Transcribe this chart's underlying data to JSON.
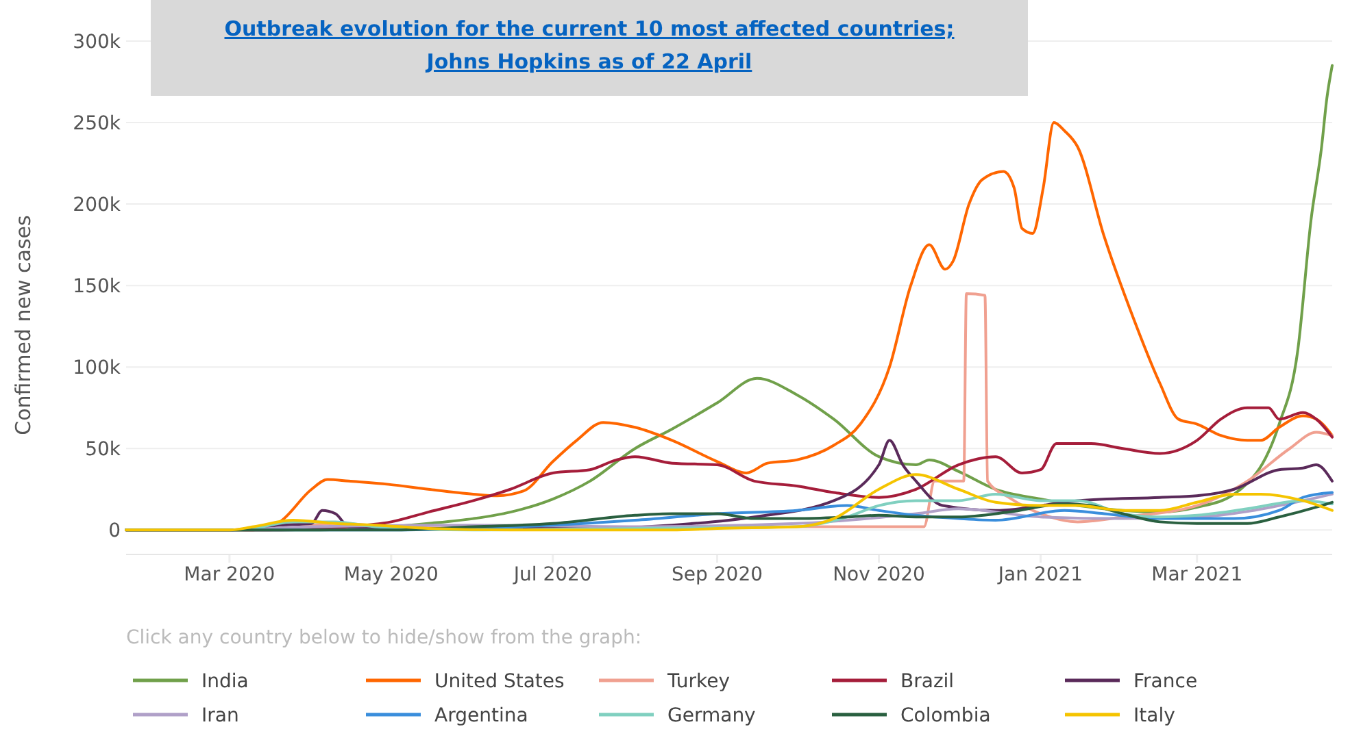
{
  "chart_data": {
    "type": "line",
    "title": "Outbreak evolution for the current 10 most affected countries;\nJohns Hopkins as of  22 April",
    "ylabel": "Confirmed new cases",
    "legend_title": "Click any country below to hide/show from the graph:",
    "legend": "bottom",
    "grid": "y",
    "marker": "none",
    "line_style": "solid",
    "xlim": [
      "2020-01-22",
      "2021-04-21"
    ],
    "xticks": [
      {
        "value": "2020-03-01",
        "label": "Mar 2020"
      },
      {
        "value": "2020-05-01",
        "label": "May 2020"
      },
      {
        "value": "2020-07-01",
        "label": "Jul 2020"
      },
      {
        "value": "2020-09-01",
        "label": "Sep 2020"
      },
      {
        "value": "2020-11-01",
        "label": "Nov 2020"
      },
      {
        "value": "2021-01-01",
        "label": "Jan 2021"
      },
      {
        "value": "2021-03-01",
        "label": "Mar 2021"
      }
    ],
    "ylim": [
      -15000,
      300000
    ],
    "yticks": [
      {
        "value": 0,
        "label": "0"
      },
      {
        "value": 50000,
        "label": "50k"
      },
      {
        "value": 100000,
        "label": "100k"
      },
      {
        "value": 150000,
        "label": "150k"
      },
      {
        "value": 200000,
        "label": "200k"
      },
      {
        "value": 250000,
        "label": "250k"
      },
      {
        "value": 300000,
        "label": "300k"
      }
    ],
    "series": [
      {
        "name": "India",
        "color": "#70a04a",
        "x": [
          "2020-01-22",
          "2020-04-01",
          "2020-05-01",
          "2020-05-15",
          "2020-06-01",
          "2020-06-15",
          "2020-07-01",
          "2020-07-15",
          "2020-08-01",
          "2020-08-15",
          "2020-09-01",
          "2020-09-16",
          "2020-10-01",
          "2020-10-15",
          "2020-11-01",
          "2020-11-15",
          "2020-11-20",
          "2020-12-01",
          "2020-12-15",
          "2021-01-01",
          "2021-01-15",
          "2021-02-01",
          "2021-02-15",
          "2021-03-01",
          "2021-03-15",
          "2021-04-01",
          "2021-04-08",
          "2021-04-13",
          "2021-04-17",
          "2021-04-19",
          "2021-04-21"
        ],
        "values": [
          0,
          0,
          2000,
          4000,
          7000,
          11000,
          19000,
          30000,
          50000,
          62000,
          78000,
          93000,
          83000,
          68000,
          45000,
          40000,
          43000,
          36000,
          25000,
          19000,
          15000,
          12000,
          11000,
          14000,
          22000,
          65000,
          110000,
          190000,
          235000,
          265000,
          285000
        ]
      },
      {
        "name": "United States",
        "color": "#ff6600",
        "x": [
          "2020-01-22",
          "2020-03-10",
          "2020-03-20",
          "2020-04-01",
          "2020-04-07",
          "2020-04-15",
          "2020-04-30",
          "2020-05-15",
          "2020-06-01",
          "2020-06-10",
          "2020-06-20",
          "2020-07-01",
          "2020-07-10",
          "2020-07-20",
          "2020-08-01",
          "2020-08-15",
          "2020-09-01",
          "2020-09-12",
          "2020-09-20",
          "2020-10-01",
          "2020-10-15",
          "2020-10-25",
          "2020-11-05",
          "2020-11-13",
          "2020-11-20",
          "2020-11-26",
          "2020-11-29",
          "2020-12-05",
          "2020-12-10",
          "2020-12-18",
          "2020-12-22",
          "2020-12-25",
          "2020-12-29",
          "2021-01-02",
          "2021-01-06",
          "2021-01-10",
          "2021-01-15",
          "2021-01-25",
          "2021-02-05",
          "2021-02-15",
          "2021-02-22",
          "2021-03-01",
          "2021-03-10",
          "2021-03-20",
          "2021-03-25",
          "2021-04-01",
          "2021-04-10",
          "2021-04-15",
          "2021-04-21"
        ],
        "values": [
          0,
          0,
          5000,
          25000,
          31000,
          30000,
          28000,
          25000,
          22000,
          21000,
          24000,
          42000,
          55000,
          66000,
          63000,
          55000,
          42000,
          35000,
          41000,
          43000,
          52000,
          65000,
          100000,
          150000,
          175000,
          160000,
          165000,
          200000,
          215000,
          220000,
          210000,
          185000,
          182000,
          210000,
          250000,
          245000,
          235000,
          180000,
          130000,
          90000,
          68000,
          65000,
          58000,
          55000,
          55000,
          63000,
          70000,
          68000,
          58000
        ]
      },
      {
        "name": "Turkey",
        "color": "#f0a090",
        "x": [
          "2020-01-22",
          "2020-03-15",
          "2020-04-10",
          "2020-05-01",
          "2020-06-01",
          "2020-08-01",
          "2020-10-01",
          "2020-11-18",
          "2020-11-22",
          "2020-12-03",
          "2020-12-04",
          "2020-12-11",
          "2020-12-12",
          "2020-12-20",
          "2021-01-01",
          "2021-01-15",
          "2021-02-01",
          "2021-03-01",
          "2021-03-20",
          "2021-04-05",
          "2021-04-15",
          "2021-04-21"
        ],
        "values": [
          0,
          0,
          4000,
          2000,
          1000,
          1000,
          2000,
          2000,
          30000,
          30000,
          145000,
          144000,
          30000,
          20000,
          10000,
          5000,
          8000,
          15000,
          30000,
          50000,
          60000,
          58000
        ]
      },
      {
        "name": "Brazil",
        "color": "#a51d3a",
        "x": [
          "2020-01-22",
          "2020-03-20",
          "2020-04-15",
          "2020-05-01",
          "2020-05-15",
          "2020-06-01",
          "2020-06-15",
          "2020-07-01",
          "2020-07-15",
          "2020-07-25",
          "2020-08-01",
          "2020-08-15",
          "2020-09-01",
          "2020-09-15",
          "2020-10-01",
          "2020-10-15",
          "2020-11-01",
          "2020-11-15",
          "2020-12-01",
          "2020-12-15",
          "2020-12-25",
          "2021-01-01",
          "2021-01-07",
          "2021-01-20",
          "2021-02-01",
          "2021-02-15",
          "2021-03-01",
          "2021-03-10",
          "2021-03-20",
          "2021-03-28",
          "2021-04-01",
          "2021-04-10",
          "2021-04-15",
          "2021-04-21"
        ],
        "values": [
          0,
          0,
          2000,
          5000,
          11000,
          18000,
          25000,
          35000,
          37000,
          43000,
          45000,
          41000,
          40000,
          30000,
          27000,
          23000,
          20000,
          25000,
          40000,
          45000,
          35000,
          37000,
          53000,
          53000,
          50000,
          47000,
          55000,
          68000,
          75000,
          75000,
          68000,
          72000,
          68000,
          57000
        ]
      },
      {
        "name": "France",
        "color": "#5a2a5a",
        "x": [
          "2020-01-22",
          "2020-03-01",
          "2020-03-20",
          "2020-04-01",
          "2020-04-05",
          "2020-04-10",
          "2020-04-15",
          "2020-05-15",
          "2020-07-15",
          "2020-08-15",
          "2020-09-15",
          "2020-10-15",
          "2020-11-01",
          "2020-11-05",
          "2020-11-10",
          "2020-11-15",
          "2020-11-25",
          "2020-12-15",
          "2021-01-15",
          "2021-02-15",
          "2021-03-01",
          "2021-03-15",
          "2021-04-01",
          "2021-04-10",
          "2021-04-15",
          "2021-04-21"
        ],
        "values": [
          0,
          0,
          3000,
          4000,
          12000,
          10000,
          2000,
          1000,
          1000,
          3000,
          8000,
          18000,
          40000,
          55000,
          40000,
          30000,
          15000,
          12000,
          18000,
          20000,
          21000,
          25000,
          37000,
          38000,
          40000,
          30000
        ]
      },
      {
        "name": "Iran",
        "color": "#b0a0c8",
        "x": [
          "2020-01-22",
          "2020-03-01",
          "2020-04-01",
          "2020-06-01",
          "2020-08-01",
          "2020-10-01",
          "2020-11-15",
          "2020-12-01",
          "2021-01-01",
          "2021-02-01",
          "2021-03-01",
          "2021-04-10",
          "2021-04-21"
        ],
        "values": [
          0,
          0,
          2000,
          3000,
          2000,
          4000,
          10000,
          13000,
          8000,
          7000,
          8000,
          18000,
          22000
        ]
      },
      {
        "name": "Argentina",
        "color": "#3a8edc",
        "x": [
          "2020-01-22",
          "2020-05-01",
          "2020-06-01",
          "2020-07-01",
          "2020-08-01",
          "2020-09-01",
          "2020-10-01",
          "2020-10-20",
          "2020-11-01",
          "2020-11-15",
          "2020-12-01",
          "2020-12-15",
          "2021-01-10",
          "2021-01-25",
          "2021-02-15",
          "2021-03-15",
          "2021-04-01",
          "2021-04-10",
          "2021-04-21"
        ],
        "values": [
          0,
          0,
          1000,
          3000,
          6000,
          10000,
          12000,
          15000,
          12000,
          9000,
          7000,
          6000,
          12000,
          10000,
          7000,
          7000,
          12000,
          20000,
          23000
        ]
      },
      {
        "name": "Germany",
        "color": "#80d0c0",
        "x": [
          "2020-01-22",
          "2020-03-05",
          "2020-03-25",
          "2020-04-10",
          "2020-04-25",
          "2020-06-01",
          "2020-08-01",
          "2020-10-01",
          "2020-10-20",
          "2020-11-01",
          "2020-11-15",
          "2020-12-01",
          "2020-12-15",
          "2021-01-01",
          "2021-01-15",
          "2021-02-01",
          "2021-02-15",
          "2021-03-01",
          "2021-03-20",
          "2021-04-10",
          "2021-04-21"
        ],
        "values": [
          0,
          0,
          5000,
          5000,
          2000,
          0,
          1000,
          2000,
          8000,
          15000,
          18000,
          18000,
          22000,
          18000,
          18000,
          10000,
          8000,
          9000,
          13000,
          18000,
          16000
        ]
      },
      {
        "name": "Colombia",
        "color": "#2a6040",
        "x": [
          "2020-01-22",
          "2020-04-01",
          "2020-05-01",
          "2020-06-01",
          "2020-07-01",
          "2020-08-01",
          "2020-08-15",
          "2020-09-01",
          "2020-09-15",
          "2020-10-01",
          "2020-10-20",
          "2020-11-01",
          "2020-11-15",
          "2020-12-01",
          "2020-12-20",
          "2021-01-10",
          "2021-01-20",
          "2021-02-01",
          "2021-02-15",
          "2021-03-01",
          "2021-03-20",
          "2021-04-01",
          "2021-04-15",
          "2021-04-21"
        ],
        "values": [
          0,
          0,
          0,
          2000,
          4000,
          9000,
          10000,
          10000,
          7000,
          7000,
          8000,
          9000,
          8000,
          8000,
          11000,
          16000,
          15000,
          10000,
          5000,
          4000,
          4000,
          8000,
          14000,
          17000
        ]
      },
      {
        "name": "Italy",
        "color": "#f5c400",
        "x": [
          "2020-01-22",
          "2020-03-01",
          "2020-03-10",
          "2020-03-25",
          "2020-04-10",
          "2020-04-25",
          "2020-05-15",
          "2020-06-15",
          "2020-08-15",
          "2020-09-01",
          "2020-10-01",
          "2020-10-15",
          "2020-11-01",
          "2020-11-15",
          "2020-12-01",
          "2020-12-15",
          "2021-01-01",
          "2021-01-15",
          "2021-02-01",
          "2021-02-15",
          "2021-03-01",
          "2021-03-15",
          "2021-03-25",
          "2021-04-10",
          "2021-04-21"
        ],
        "values": [
          0,
          0,
          2000,
          6000,
          4000,
          3000,
          1000,
          0,
          0,
          1000,
          2000,
          7000,
          25000,
          34000,
          25000,
          17000,
          15000,
          15000,
          12000,
          12000,
          17000,
          22000,
          22000,
          18000,
          12000
        ]
      }
    ]
  }
}
